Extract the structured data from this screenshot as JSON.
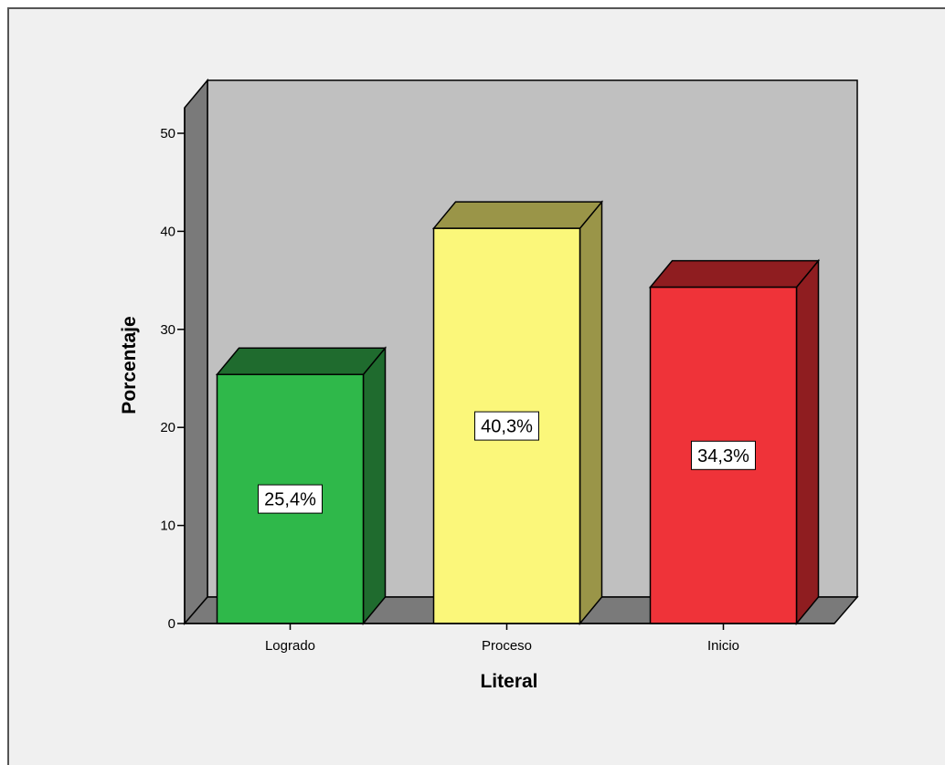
{
  "chart_data": {
    "type": "bar",
    "style": "3d",
    "categories": [
      "Logrado",
      "Proceso",
      "Inicio"
    ],
    "values": [
      25.4,
      40.3,
      34.3
    ],
    "data_labels": [
      "25,4%",
      "40,3%",
      "34,3%"
    ],
    "colors": [
      "#2fb84a",
      "#fbf77a",
      "#ef3339"
    ],
    "side_colors": [
      "#1f6b2e",
      "#9a9548",
      "#8f1d20"
    ],
    "xlabel": "Literal",
    "ylabel": "Porcentaje",
    "ylim": [
      0,
      50
    ],
    "y_ticks": [
      "0",
      "10",
      "20",
      "30",
      "40",
      "50"
    ],
    "grid": false,
    "legend": "none",
    "background_colors": {
      "frame": "#f0f0f0",
      "back_wall": "#c0c0c0",
      "side_wall": "#7a7a7a",
      "floor": "#7a7a7a"
    }
  }
}
